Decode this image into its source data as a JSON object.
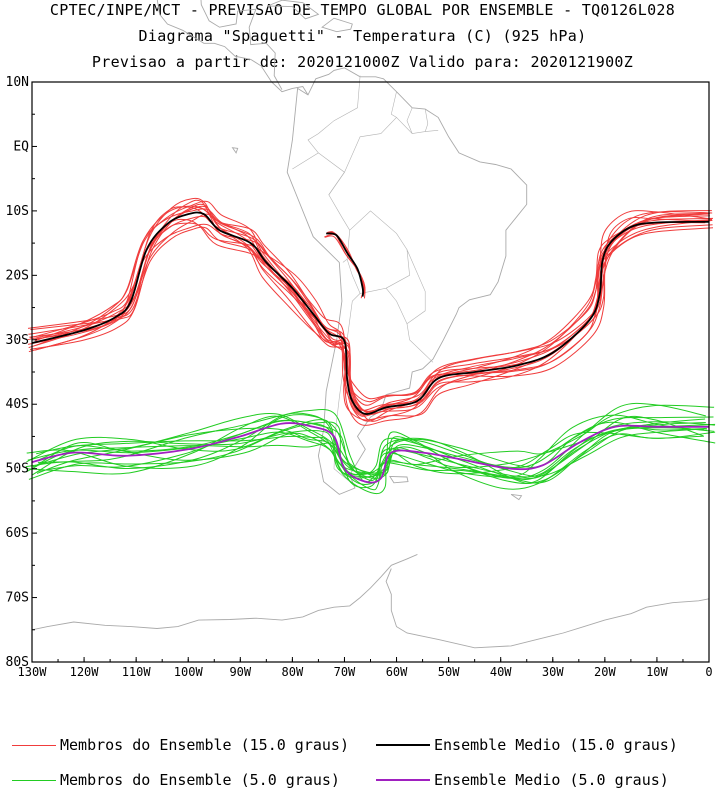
{
  "header": {
    "line1": "CPTEC/INPE/MCT - PREVISAO DE TEMPO GLOBAL POR ENSEMBLE - TQ0126L028",
    "line2": "Diagrama \"Spaguetti\" - Temperatura (C) (925 hPa)",
    "line3": "Previsao a partir de: 2020121000Z  Valido para: 2020121900Z"
  },
  "map": {
    "lat_labels": [
      "10N",
      "EQ",
      "10S",
      "20S",
      "30S",
      "40S",
      "50S",
      "60S",
      "70S",
      "80S"
    ],
    "lon_labels": [
      "130W",
      "120W",
      "110W",
      "100W",
      "90W",
      "80W",
      "70W",
      "60W",
      "50W",
      "40W",
      "30W",
      "20W",
      "10W",
      "0"
    ],
    "extent": {
      "lon_min": -130,
      "lon_max": 0,
      "lat_min": -80,
      "lat_max": 10
    },
    "land_color": "#aaaaaa"
  },
  "legend": {
    "members_15": "Membros do Ensemble (15.0 graus)",
    "mean_15": "Ensemble Medio (15.0 graus)",
    "members_5": "Membros do Ensemble (5.0 graus)",
    "mean_5": "Ensemble Medio (5.0 graus)"
  },
  "colors": {
    "members_15": "#f03c3c",
    "mean_15": "#000000",
    "members_5": "#22cc22",
    "mean_5": "#a020c0"
  },
  "chart_data": {
    "type": "spaghetti-contour",
    "contours": [
      {
        "name": "Ensemble Medio (15.0 graus)",
        "level_c": 15.0,
        "points": [
          [
            -130,
            -30.5
          ],
          [
            -120,
            -28.5
          ],
          [
            -114,
            -26.5
          ],
          [
            -111,
            -24
          ],
          [
            -108,
            -16
          ],
          [
            -104,
            -12
          ],
          [
            -100,
            -10.5
          ],
          [
            -97,
            -10.5
          ],
          [
            -94,
            -13
          ],
          [
            -88,
            -15
          ],
          [
            -85,
            -18
          ],
          [
            -80,
            -22
          ],
          [
            -76,
            -26
          ],
          [
            -73,
            -29
          ],
          [
            -70,
            -30.2
          ],
          [
            -69.5,
            -36
          ],
          [
            -68.5,
            -39.5
          ],
          [
            -66,
            -41.5
          ],
          [
            -62,
            -40.5
          ],
          [
            -56,
            -39.5
          ],
          [
            -52,
            -36
          ],
          [
            -45,
            -35
          ],
          [
            -37,
            -34
          ],
          [
            -30,
            -32
          ],
          [
            -23,
            -27
          ],
          [
            -21,
            -23
          ],
          [
            -20.5,
            -18
          ],
          [
            -19,
            -15
          ],
          [
            -15,
            -12.5
          ],
          [
            -10,
            -11.8
          ],
          [
            0,
            -11.7
          ]
        ]
      },
      {
        "name": "Ensemble Medio (15.0 graus)",
        "level_c": 15.0,
        "points": [
          [
            -73.5,
            -13.5
          ],
          [
            -71.5,
            -13.8
          ],
          [
            -69.5,
            -16.5
          ],
          [
            -67.5,
            -19
          ],
          [
            -66.5,
            -22
          ],
          [
            -66.5,
            -23.3
          ]
        ]
      },
      {
        "name": "Ensemble Medio (5.0 graus)",
        "level_c": 5.0,
        "points": [
          [
            -130,
            -49
          ],
          [
            -122,
            -47.5
          ],
          [
            -112,
            -48
          ],
          [
            -100,
            -47
          ],
          [
            -90,
            -45
          ],
          [
            -82,
            -43
          ],
          [
            -76,
            -43.5
          ],
          [
            -72,
            -45
          ],
          [
            -70,
            -50
          ],
          [
            -66,
            -52
          ],
          [
            -63,
            -51.5
          ],
          [
            -61,
            -47.5
          ],
          [
            -55,
            -47.5
          ],
          [
            -48,
            -48.5
          ],
          [
            -38,
            -50
          ],
          [
            -32,
            -49.5
          ],
          [
            -25,
            -46
          ],
          [
            -18,
            -43.5
          ],
          [
            -10,
            -43.5
          ],
          [
            0,
            -43.5
          ]
        ]
      }
    ],
    "members": {
      "15.0": "red spaghetti lines around the 15.0 C contour",
      "5.0": "green spaghetti lines around the 5.0 C contour"
    }
  }
}
